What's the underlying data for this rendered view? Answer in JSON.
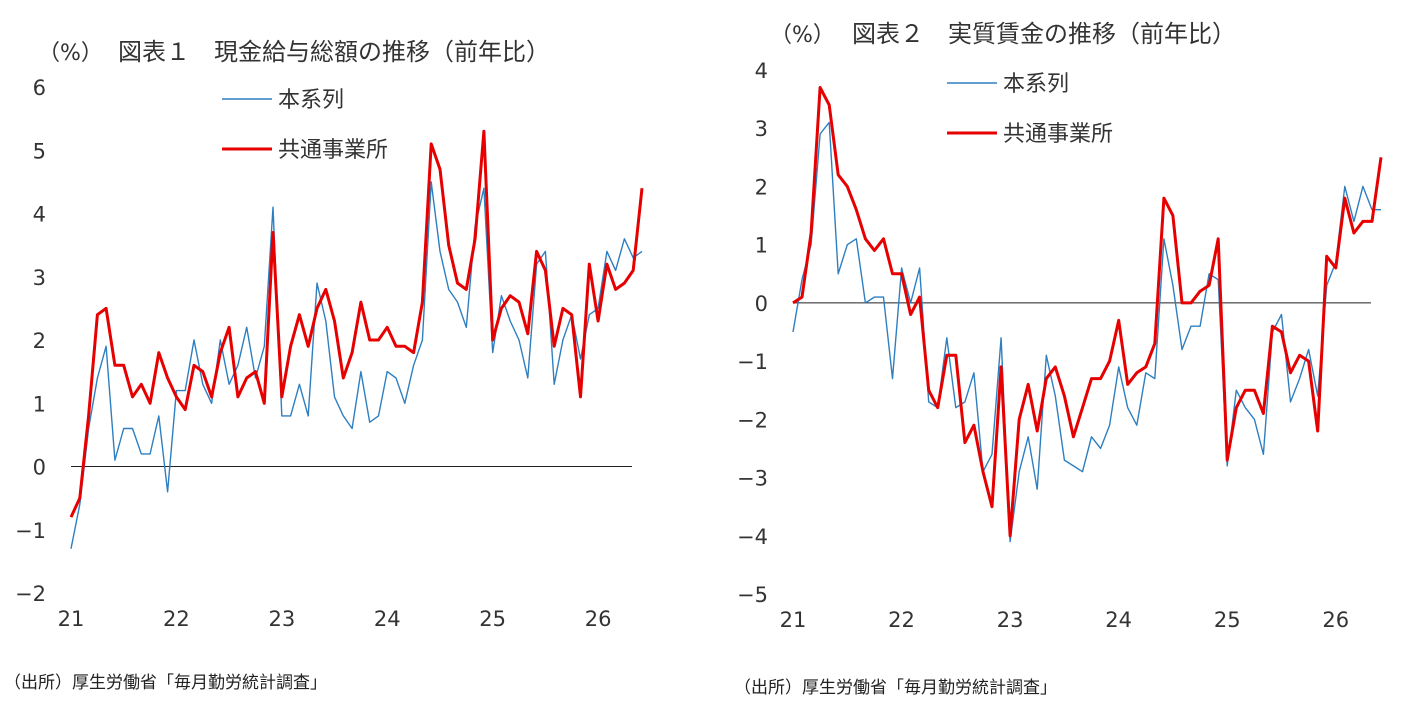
{
  "charts": [
    {
      "unit": "（%）",
      "title": "図表１　現金給与総額の推移（前年比）",
      "source": "（出所）厚生労働省「毎月勤労統計調査」"
    },
    {
      "unit": "（%）",
      "title": "図表２　実質賃金の推移（前年比）",
      "source": "（出所）厚生労働省「毎月勤労統計調査」"
    }
  ],
  "chart_data": [
    {
      "type": "line",
      "title": "図表１　現金給与総額の推移（前年比）",
      "ylabel": "（%）",
      "ylim": [
        -2,
        6
      ],
      "yticks": [
        "6",
        "5",
        "4",
        "3",
        "2",
        "1",
        "0",
        "−1",
        "−2"
      ],
      "xticks": [
        "21",
        "22",
        "23",
        "24",
        "25",
        "26"
      ],
      "legend": {
        "position": "top-center"
      },
      "series": [
        {
          "name": "本系列",
          "color": "#2e7fc0",
          "values": [
            -1.3,
            -0.6,
            0.6,
            1.4,
            1.9,
            0.1,
            0.6,
            0.6,
            0.2,
            0.2,
            0.8,
            -0.4,
            1.2,
            1.2,
            2.0,
            1.3,
            1.0,
            2.0,
            1.3,
            1.6,
            2.2,
            1.4,
            1.9,
            4.1,
            0.8,
            0.8,
            1.3,
            0.8,
            2.9,
            2.3,
            1.1,
            0.8,
            0.6,
            1.5,
            0.7,
            0.8,
            1.5,
            1.4,
            1.0,
            1.6,
            2.0,
            4.5,
            3.4,
            2.8,
            2.6,
            2.2,
            3.8,
            4.4,
            1.8,
            2.7,
            2.3,
            2.0,
            1.4,
            3.2,
            3.4,
            1.3,
            2.0,
            2.4,
            1.7,
            2.4,
            2.5,
            3.4,
            3.1,
            3.6,
            3.3,
            3.4
          ]
        },
        {
          "name": "共通事業所",
          "color": "#e60000",
          "values": [
            -0.8,
            -0.5,
            0.8,
            2.4,
            2.5,
            1.6,
            1.6,
            1.1,
            1.3,
            1.0,
            1.8,
            1.4,
            1.1,
            0.9,
            1.6,
            1.5,
            1.1,
            1.8,
            2.2,
            1.1,
            1.4,
            1.5,
            1.0,
            3.7,
            1.1,
            1.9,
            2.4,
            1.9,
            2.5,
            2.8,
            2.3,
            1.4,
            1.8,
            2.6,
            2.0,
            2.0,
            2.2,
            1.9,
            1.9,
            1.8,
            2.6,
            5.1,
            4.7,
            3.5,
            2.9,
            2.8,
            3.6,
            5.3,
            2.0,
            2.5,
            2.7,
            2.6,
            2.1,
            3.4,
            3.1,
            1.9,
            2.5,
            2.4,
            1.1,
            3.2,
            2.3,
            3.2,
            2.8,
            2.9,
            3.1,
            4.4
          ]
        }
      ]
    },
    {
      "type": "line",
      "title": "図表２　実質賃金の推移（前年比）",
      "ylabel": "（%）",
      "ylim": [
        -5,
        4
      ],
      "yticks": [
        "4",
        "3",
        "2",
        "1",
        "0",
        "−1",
        "−2",
        "−3",
        "−4",
        "−5"
      ],
      "xticks": [
        "21",
        "22",
        "23",
        "24",
        "25",
        "26"
      ],
      "legend": {
        "position": "top-center"
      },
      "series": [
        {
          "name": "本系列",
          "color": "#2e7fc0",
          "values": [
            -0.5,
            0.4,
            1.0,
            2.9,
            3.1,
            0.5,
            1.0,
            1.1,
            0.0,
            0.1,
            0.1,
            -1.3,
            0.6,
            0.0,
            0.6,
            -1.7,
            -1.8,
            -0.6,
            -1.8,
            -1.7,
            -1.2,
            -2.9,
            -2.6,
            -0.6,
            -4.1,
            -2.9,
            -2.3,
            -3.2,
            -0.9,
            -1.6,
            -2.7,
            -2.8,
            -2.9,
            -2.3,
            -2.5,
            -2.1,
            -1.1,
            -1.8,
            -2.1,
            -1.2,
            -1.3,
            1.1,
            0.3,
            -0.8,
            -0.4,
            -0.4,
            0.5,
            0.4,
            -2.8,
            -1.5,
            -1.8,
            -2.0,
            -2.6,
            -0.5,
            -0.2,
            -1.7,
            -1.3,
            -0.8,
            -1.6,
            0.3,
            0.7,
            2.0,
            1.4,
            2.0,
            1.6,
            1.6
          ]
        },
        {
          "name": "共通事業所",
          "color": "#e60000",
          "values": [
            0.0,
            0.1,
            1.2,
            3.7,
            3.4,
            2.2,
            2.0,
            1.6,
            1.1,
            0.9,
            1.1,
            0.5,
            0.5,
            -0.2,
            0.1,
            -1.5,
            -1.8,
            -0.9,
            -0.9,
            -2.4,
            -2.1,
            -2.9,
            -3.5,
            -1.1,
            -4.0,
            -2.0,
            -1.4,
            -2.2,
            -1.3,
            -1.1,
            -1.6,
            -2.3,
            -1.8,
            -1.3,
            -1.3,
            -1.0,
            -0.3,
            -1.4,
            -1.2,
            -1.1,
            -0.7,
            1.8,
            1.5,
            0.0,
            0.0,
            0.2,
            0.3,
            1.1,
            -2.7,
            -1.8,
            -1.5,
            -1.5,
            -1.9,
            -0.4,
            -0.5,
            -1.2,
            -0.9,
            -1.0,
            -2.2,
            0.8,
            0.6,
            1.8,
            1.2,
            1.4,
            1.4,
            2.5
          ]
        }
      ]
    }
  ]
}
